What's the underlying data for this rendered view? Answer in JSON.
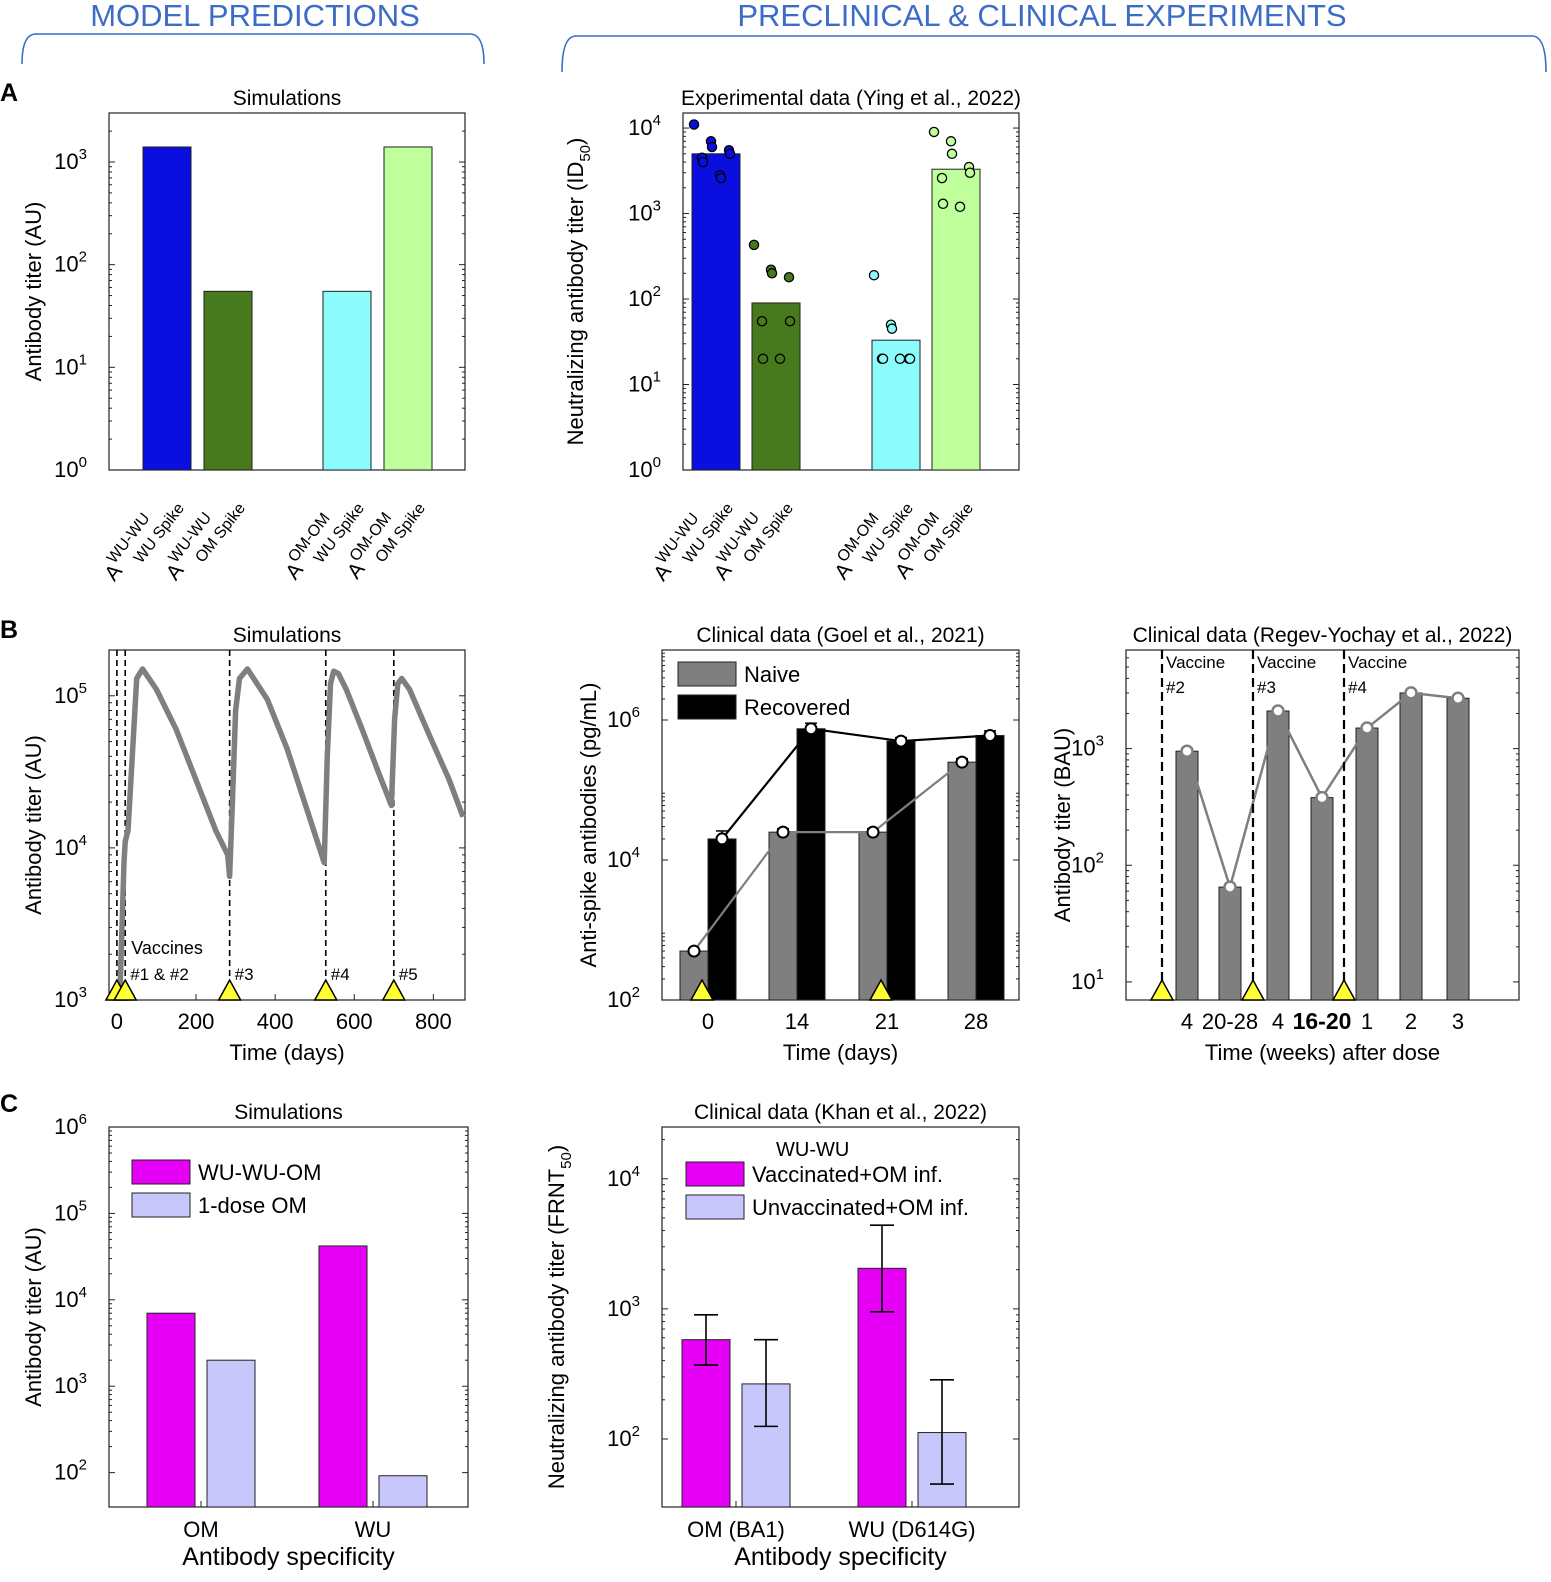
{
  "header": {
    "left": "MODEL PREDICTIONS",
    "right": "PRECLINICAL & CLINICAL EXPERIMENTS",
    "color": "#3b6cc7"
  },
  "panel_labels": [
    "A",
    "B",
    "C"
  ],
  "colors": {
    "blue": "#0a0fe0",
    "darkgreen": "#477a1c",
    "cyan": "#8bfbfb",
    "lightgreen": "#bfff9c",
    "magenta": "#e600f5",
    "lavender": "#c7c7fb",
    "gray": "#7f7f7f",
    "black": "#000000",
    "marker": "#ffff33"
  },
  "chart_data": [
    {
      "id": "A1",
      "type": "bar",
      "title": "Simulations",
      "ylabel": "Antibody titer (AU)",
      "yscale": "log",
      "ylim": [
        1,
        3000
      ],
      "ytick_exponents": [
        0,
        1,
        2,
        3
      ],
      "categories": [
        {
          "sup": "WU-WU",
          "sub": "WU Spike"
        },
        {
          "sup": "WU-WU",
          "sub": "OM Spike"
        },
        {
          "sup": "OM-OM",
          "sub": "WU Spike"
        },
        {
          "sup": "OM-OM",
          "sub": "OM Spike"
        }
      ],
      "values": [
        1400,
        55,
        55,
        1400
      ],
      "bar_colors": [
        "blue",
        "darkgreen",
        "cyan",
        "lightgreen"
      ]
    },
    {
      "id": "A2",
      "type": "bar",
      "title": "Experimental data (Ying et al., 2022)",
      "ylabel": "Neutralizing antibody titer (ID",
      "ylabel_sub": "50",
      "ylabel_end": ")",
      "yscale": "log",
      "ylim": [
        1,
        15000
      ],
      "ytick_exponents": [
        0,
        1,
        2,
        3,
        4
      ],
      "categories": [
        {
          "sup": "WU-WU",
          "sub": "WU Spike"
        },
        {
          "sup": "WU-WU",
          "sub": "OM Spike"
        },
        {
          "sup": "OM-OM",
          "sub": "WU Spike"
        },
        {
          "sup": "OM-OM",
          "sub": "OM Spike"
        }
      ],
      "values": [
        5000,
        90,
        33,
        3300
      ],
      "bar_colors": [
        "blue",
        "darkgreen",
        "cyan",
        "lightgreen"
      ],
      "points": [
        [
          11000,
          7000,
          6000,
          5500,
          5000,
          4500,
          4000,
          2800,
          2600
        ],
        [
          430,
          220,
          200,
          180,
          55,
          55,
          20,
          20
        ],
        [
          190,
          50,
          45,
          20,
          20,
          20,
          20,
          20
        ],
        [
          9000,
          7000,
          5000,
          3500,
          3000,
          2600,
          1300,
          1200
        ]
      ]
    },
    {
      "id": "B1",
      "type": "line",
      "title": "Simulations",
      "xlabel": "Time (days)",
      "ylabel": "Antibody titer (AU)",
      "yscale": "log",
      "xlim": [
        -20,
        880
      ],
      "ylim": [
        1000,
        200000
      ],
      "xticks": [
        0,
        200,
        400,
        600,
        800
      ],
      "ytick_exponents": [
        3,
        4,
        5
      ],
      "x": [
        0,
        8,
        18,
        21,
        28,
        36,
        50,
        65,
        100,
        150,
        200,
        250,
        280,
        285,
        292,
        300,
        310,
        330,
        380,
        430,
        480,
        524,
        532,
        540,
        548,
        560,
        580,
        620,
        660,
        694,
        702,
        710,
        720,
        740,
        790,
        840,
        875
      ],
      "y": [
        1000,
        1200,
        8000,
        11000,
        13000,
        30000,
        130000,
        150000,
        110000,
        60000,
        28000,
        13000,
        9000,
        6500,
        20000,
        80000,
        130000,
        150000,
        95000,
        45000,
        18000,
        8000,
        40000,
        120000,
        145000,
        140000,
        110000,
        60000,
        32000,
        19000,
        70000,
        120000,
        130000,
        110000,
        55000,
        28000,
        16000
      ],
      "vlines": [
        0,
        21,
        285,
        528,
        700
      ],
      "markers": [
        0,
        21,
        285,
        528,
        700
      ],
      "annotation_title": "Vaccines",
      "annotations": [
        "#1 & #2",
        "#3",
        "#4",
        "#5"
      ]
    },
    {
      "id": "B2",
      "type": "bar",
      "title": "Clinical data (Goel et al., 2021)",
      "xlabel": "Time (days)",
      "ylabel": "Anti-spike antibodies (pg/mL)",
      "yscale": "log",
      "ylim": [
        100,
        10000000
      ],
      "ytick_exponents": [
        2,
        4,
        6
      ],
      "categories": [
        "0",
        "14",
        "21",
        "28"
      ],
      "series": [
        {
          "name": "Naive",
          "color": "gray",
          "values": [
            500,
            25000,
            25000,
            250000
          ],
          "err": [
            0,
            3000,
            3000,
            30000
          ]
        },
        {
          "name": "Recovered",
          "color": "black",
          "values": [
            20000,
            750000,
            500000,
            600000
          ],
          "err": [
            6000,
            150000,
            60000,
            100000
          ]
        }
      ],
      "markers": [
        0,
        2
      ]
    },
    {
      "id": "B3",
      "type": "bar",
      "title": "Clinical data (Regev-Yochay et al., 2022)",
      "xlabel": "Time (weeks) after dose",
      "ylabel": "Antibody titer (BAU)",
      "yscale": "log",
      "ylim": [
        7,
        7000
      ],
      "ytick_exponents": [
        1,
        2,
        3
      ],
      "categories": [
        "4",
        "20-28",
        "4",
        "16-20",
        "1",
        "2",
        "3"
      ],
      "values": [
        950,
        65,
        2100,
        380,
        1500,
        3000,
        2700
      ],
      "vaccine_label": "Vaccine",
      "vaccine_notes": [
        "#2",
        "#3",
        "#4"
      ]
    },
    {
      "id": "C1",
      "type": "bar",
      "title": "Simulations",
      "xlabel": "Antibody specificity",
      "ylabel": "Antibody titer (AU)",
      "yscale": "log",
      "ylim": [
        40,
        1000000
      ],
      "ytick_exponents": [
        2,
        3,
        4,
        5,
        6
      ],
      "categories": [
        "OM",
        "WU"
      ],
      "series": [
        {
          "name": "WU-WU-OM",
          "color": "magenta",
          "values": [
            7000,
            42000
          ]
        },
        {
          "name": "1-dose OM",
          "color": "lavender",
          "values": [
            2000,
            92
          ]
        }
      ]
    },
    {
      "id": "C2",
      "type": "bar",
      "title": "Clinical data (Khan et al., 2022)",
      "xlabel": "Antibody specificity",
      "ylabel": "Neutralizing antibody titer (FRNT",
      "ylabel_sub": "50",
      "ylabel_end": ")",
      "yscale": "log",
      "ylim": [
        30,
        25000
      ],
      "ytick_exponents": [
        2,
        3,
        4
      ],
      "categories": [
        "OM (BA1)",
        "WU (D614G)"
      ],
      "legend_super": "WU-WU",
      "series": [
        {
          "name": "Vaccinated+OM inf.",
          "color": "magenta",
          "values": [
            580,
            2050
          ],
          "err_lo": [
            370,
            950
          ],
          "err_hi": [
            900,
            4400
          ]
        },
        {
          "name": "Unvaccinated+OM inf.",
          "color": "lavender",
          "values": [
            265,
            112
          ],
          "err_lo": [
            125,
            45
          ],
          "err_hi": [
            580,
            285
          ]
        }
      ]
    }
  ]
}
